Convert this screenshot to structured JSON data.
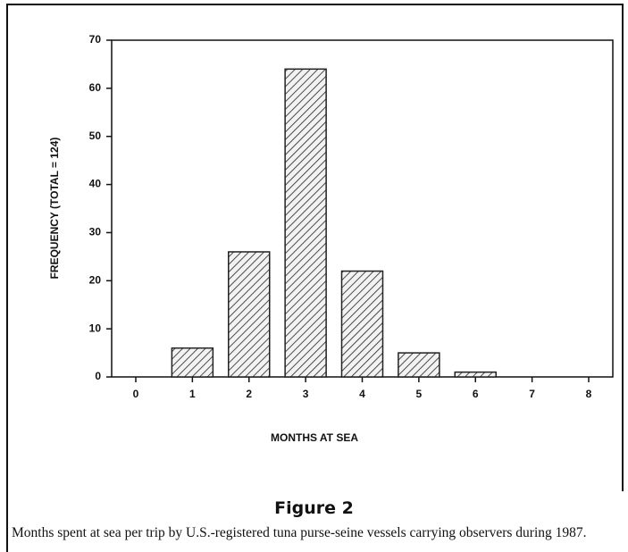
{
  "chart_data": {
    "type": "bar",
    "figure_label": "Figure 2",
    "caption": "Months spent at sea per trip by U.S.-registered tuna purse-seine vessels carrying observers during 1987.",
    "xlabel": "MONTHS AT SEA",
    "ylabel": "FREQUENCY (TOTAL = 124)",
    "categories": [
      "0",
      "1",
      "2",
      "3",
      "4",
      "5",
      "6",
      "7",
      "8"
    ],
    "values": [
      0,
      6,
      26,
      64,
      22,
      5,
      1,
      0,
      0
    ],
    "color": "#222222",
    "ylim": [
      0,
      70
    ],
    "yticks": [
      0,
      10,
      20,
      30,
      40,
      50,
      60,
      70
    ],
    "grid": false
  }
}
